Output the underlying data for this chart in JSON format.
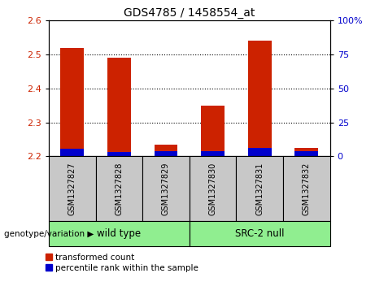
{
  "title": "GDS4785 / 1458554_at",
  "samples": [
    "GSM1327827",
    "GSM1327828",
    "GSM1327829",
    "GSM1327830",
    "GSM1327831",
    "GSM1327832"
  ],
  "group_label_1": "wild type",
  "group_label_2": "SRC-2 null",
  "group_color": "#90EE90",
  "red_values": [
    2.52,
    2.49,
    2.235,
    2.35,
    2.54,
    2.225
  ],
  "blue_values": [
    0.022,
    0.014,
    0.016,
    0.016,
    0.024,
    0.016
  ],
  "ymin": 2.2,
  "ymax": 2.6,
  "y_ticks_left": [
    2.2,
    2.3,
    2.4,
    2.5,
    2.6
  ],
  "y_ticks_right_vals": [
    0,
    25,
    50,
    75,
    100
  ],
  "y_ticks_right_labels": [
    "0",
    "25",
    "50",
    "75",
    "100%"
  ],
  "bar_width": 0.5,
  "red_color": "#CC2200",
  "blue_color": "#0000CC",
  "left_label_color": "#CC2200",
  "right_label_color": "#0000CC",
  "bg_color": "#C8C8C8",
  "legend_red_label": "transformed count",
  "legend_blue_label": "percentile rank within the sample",
  "genotype_label": "genotype/variation"
}
